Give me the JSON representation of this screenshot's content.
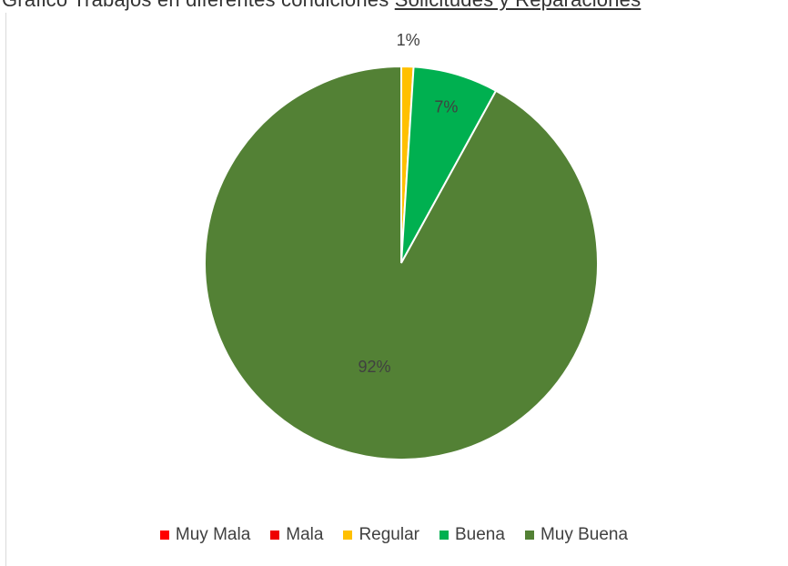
{
  "header_fragment": {
    "text": "Grafico Trabajos en diferentes condiciones",
    "underlined": "Solicitudes y Reparaciones"
  },
  "chart_data": {
    "type": "pie",
    "categories": [
      "Muy Mala",
      "Mala",
      "Regular",
      "Buena",
      "Muy Buena"
    ],
    "values": [
      0,
      0,
      1,
      7,
      92
    ],
    "data_labels": [
      "",
      "",
      "1%",
      "7%",
      "92%"
    ],
    "colors": [
      "#ff0000",
      "#ee0000",
      "#ffc000",
      "#00b050",
      "#538135"
    ],
    "legend_position": "bottom"
  }
}
